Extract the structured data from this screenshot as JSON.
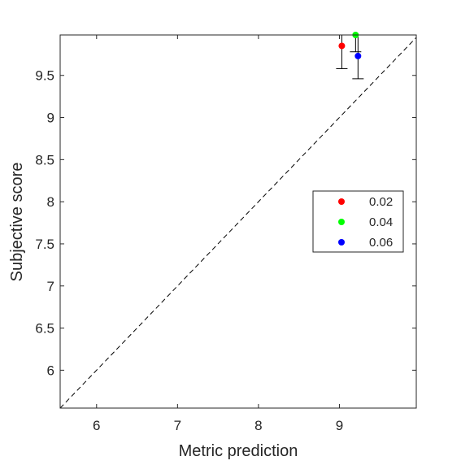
{
  "chart_data": {
    "type": "scatter",
    "title": "",
    "xlabel": "Metric prediction",
    "ylabel": "Subjective score",
    "xlim": [
      5.55,
      9.95
    ],
    "ylim": [
      5.55,
      9.98
    ],
    "xticks": [
      6,
      7,
      8,
      9
    ],
    "xtick_labels": [
      "6",
      "7",
      "8",
      "9"
    ],
    "yticks": [
      6,
      6.5,
      7,
      7.5,
      8,
      8.5,
      9,
      9.5
    ],
    "ytick_labels": [
      "6",
      "6.5",
      "7",
      "7.5",
      "8",
      "8.5",
      "9",
      "9.5"
    ],
    "grid": false,
    "box": true,
    "reference_line": {
      "style": "dashed",
      "from": [
        5.55,
        5.55
      ],
      "to": [
        9.95,
        9.95
      ],
      "color": "#000000"
    },
    "legend": {
      "position": "right",
      "entries": [
        {
          "label": "0.02",
          "color": "#ff0000"
        },
        {
          "label": "0.04",
          "color": "#00ff00"
        },
        {
          "label": "0.06",
          "color": "#0000ff"
        }
      ]
    },
    "series": [
      {
        "name": "0.02",
        "color": "#ff0000",
        "x": [
          9.03
        ],
        "y": [
          9.85
        ],
        "yerr_low": [
          9.58
        ],
        "yerr_high": [
          9.98
        ]
      },
      {
        "name": "0.04",
        "color": "#00ff00",
        "x": [
          9.2
        ],
        "y": [
          9.98
        ],
        "yerr_low": [
          9.78
        ],
        "yerr_high": [
          9.98
        ]
      },
      {
        "name": "0.06",
        "color": "#0000ff",
        "x": [
          9.23
        ],
        "y": [
          9.73
        ],
        "yerr_low": [
          9.46
        ],
        "yerr_high": [
          9.98
        ]
      }
    ]
  }
}
